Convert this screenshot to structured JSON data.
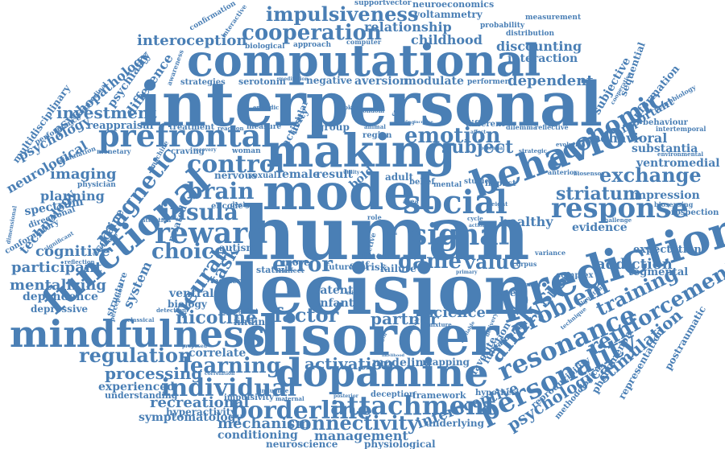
{
  "colors": {
    "word": "#4a7fb5",
    "background": "#ffffff"
  },
  "words": {
    "interpersonal": "interpersonal",
    "computational": "computational",
    "making": "making",
    "model": "model",
    "human": "human",
    "decision": "decision",
    "disorder": "disorder",
    "mindfulness": "mindfulness",
    "dopamine": "dopamine",
    "prediction": "prediction",
    "behavior": "behavior",
    "social": "social",
    "functional": "functional",
    "prefrontal": "prefrontal",
    "control": "control",
    "brain": "brain",
    "signal": "signal",
    "response": "response",
    "reward": "reward",
    "insula": "insula",
    "personality": "personality",
    "resonance": "resonance",
    "analysis": "analysis",
    "problem": "problem",
    "reinforcement": "reinforcement",
    "attachment": "attachment",
    "borderline": "borderline",
    "individual": "individual",
    "cooperation": "cooperation",
    "impulsiveness": "impulsiveness",
    "interoception": "interoception",
    "economic": "economic",
    "exchange": "exchange",
    "striatum": "striatum",
    "magnetic": "magnetic",
    "emotion": "emotion",
    "subject": "subject",
    "error": "error",
    "game": "game",
    "value": "value",
    "choice": "choice",
    "neural": "neural",
    "task": "task",
    "regulation": "regulation",
    "learning": "learning",
    "processing": "processing",
    "connectivity": "connectivity",
    "mechanism": "mechanism",
    "recreational": "recreational",
    "nicotine": "nicotine",
    "factor": "factor",
    "partner": "partner",
    "activation": "activation",
    "science": "science",
    "training": "training",
    "psychological": "psychological",
    "stimulation": "stimulation",
    "interoceptive": "interoceptive",
    "management": "management",
    "conditioning": "conditioning",
    "symptomatology": "symptomatology",
    "investment": "investment",
    "cognitive": "cognitive",
    "participant": "participant",
    "mentalizing": "mentalizing",
    "imaging": "imaging",
    "planning": "planning",
    "technology": "technology",
    "psychology": "psychology",
    "neurological": "neurological",
    "psychopathology": "psychopathology",
    "multidisciplinary": "multidisciplinary",
    "psychiatry": "psychiatry",
    "difference": "difference",
    "cocaine": "cocaine",
    "system": "system",
    "structure": "structure",
    "related": "related",
    "addiction": "addiction",
    "evidence": "evidence",
    "healthy": "healthy",
    "impression": "impression",
    "ventromedial": "ventromedial",
    "substantia": "substantia",
    "behavioral": "behavioral",
    "important": "important",
    "information": "information",
    "subjective": "subjective",
    "sequential": "sequential",
    "dependent": "dependent",
    "discounting": "discounting",
    "interaction": "interaction",
    "relationship": "relationship",
    "childhood": "childhood",
    "modulate": "modulate",
    "aversion": "aversion",
    "negative": "negative",
    "serotonin": "serotonin",
    "strategies": "strategies",
    "reappraisal": "reappraisal",
    "treatment": "treatment",
    "craving": "craving",
    "woman": "woman",
    "nervous": "nervous",
    "sexual": "sexual",
    "female": "female",
    "result": "result",
    "bold": "bold",
    "adult": "adult",
    "belief": "belief",
    "mental": "mental",
    "studies": "studies",
    "impact": "impact",
    "relation": "relation",
    "valuation": "valuation",
    "complex": "complex",
    "tegmental": "tegmental",
    "expectation": "expectation",
    "postraumatic": "postraumatic",
    "representation": "representation",
    "phenomenon": "phenomenon",
    "reproducibility": "reproducibility",
    "methodological": "methodological",
    "hypothesi": "hypothesi",
    "modeling": "modeling",
    "mapping": "mapping",
    "correlate": "correlate",
    "experienced": "experienced",
    "understanding": "understanding",
    "hyperactivity": "hyperactivity",
    "impulsivity": "impulsivity",
    "neuroscience": "neuroscience",
    "physiological": "physiological",
    "underlying": "underlying",
    "framework": "framework",
    "deception": "deception",
    "latent": "latent",
    "infant": "infant",
    "ventral": "ventral",
    "biology": "biology",
    "depressive": "depressive",
    "dependence": "dependence",
    "autism": "autism",
    "more": "more",
    "time": "time",
    "trust": "trust",
    "self": "self",
    "risk": "risk",
    "failure": "failure",
    "future": "future",
    "statml": "statml",
    "episodic": "episodic",
    "activity": "activity",
    "group": "group",
    "different": "different",
    "dilemma": "dilemma",
    "reflective": "reflective",
    "evolution": "evolution",
    "anterior": "anterior",
    "biosensor": "biosensor",
    "environmental": "environmental",
    "intertemporal": "intertemporal",
    "behaviour": "behaviour",
    "neurobiology": "neurobiology",
    "cooperative": "cooperative",
    "prospection": "prospection",
    "biosensing": "biosensing",
    "challenge": "challenge",
    "favorite": "favorite",
    "function": "function",
    "based": "based",
    "variance": "variance",
    "corpus": "corpus",
    "technique": "technique",
    "algorithm": "algorithm",
    "spectrum": "spectrum",
    "directional": "directional",
    "conformatory": "conformatory",
    "dimensional": "dimensional",
    "physician": "physician",
    "machine": "machine",
    "simulation": "simulation",
    "longitudinal": "longitudinal",
    "performance": "performance",
    "monetary": "monetary",
    "significant": "significant",
    "reflection": "reflection",
    "amplitude": "amplitude",
    "perception": "perception",
    "classical": "classical",
    "detection": "detection",
    "attention": "attention",
    "encode": "encode",
    "design": "design",
    "effect": "effect",
    "mother": "mother",
    "finding": "finding",
    "medial": "medial",
    "middle": "middle",
    "patient": "patient",
    "maternal": "maternal",
    "posterior": "posterior",
    "computer": "computer",
    "approach": "approach",
    "biological": "biological",
    "awareness": "awareness",
    "measure": "measure",
    "meditation": "meditation",
    "performer": "performer",
    "reaction": "reaction",
    "recovery": "recovery",
    "smoker": "smoker",
    "condom": "condom",
    "central": "central",
    "animal": "animal",
    "region": "region",
    "playing": "playing",
    "increase": "increase",
    "affect": "affect",
    "potential": "potential",
    "strategic": "strategic",
    "insular": "insular",
    "utility": "utility",
    "area": "area",
    "weight": "weight",
    "cycle": "cycle",
    "action": "action",
    "role": "role",
    "loss": "loss",
    "fictive": "fictive",
    "primary": "primary",
    "plasmon": "plasmon",
    "delivery": "delivery",
    "mixture": "mixture",
    "available": "available",
    "variable": "variable",
    "strength": "strength",
    "likelihood": "likelihood",
    "influence": "influence",
    "proposed": "proposed",
    "correlation": "correlation",
    "distribution": "distribution",
    "measurement": "measurement",
    "probability": "probability",
    "voltammetry": "voltammetry",
    "neuroeconomics": "neuroeconomics",
    "supportvector": "supportvector",
    "confirmation": "confirmation",
    "interactive": "interactive"
  }
}
